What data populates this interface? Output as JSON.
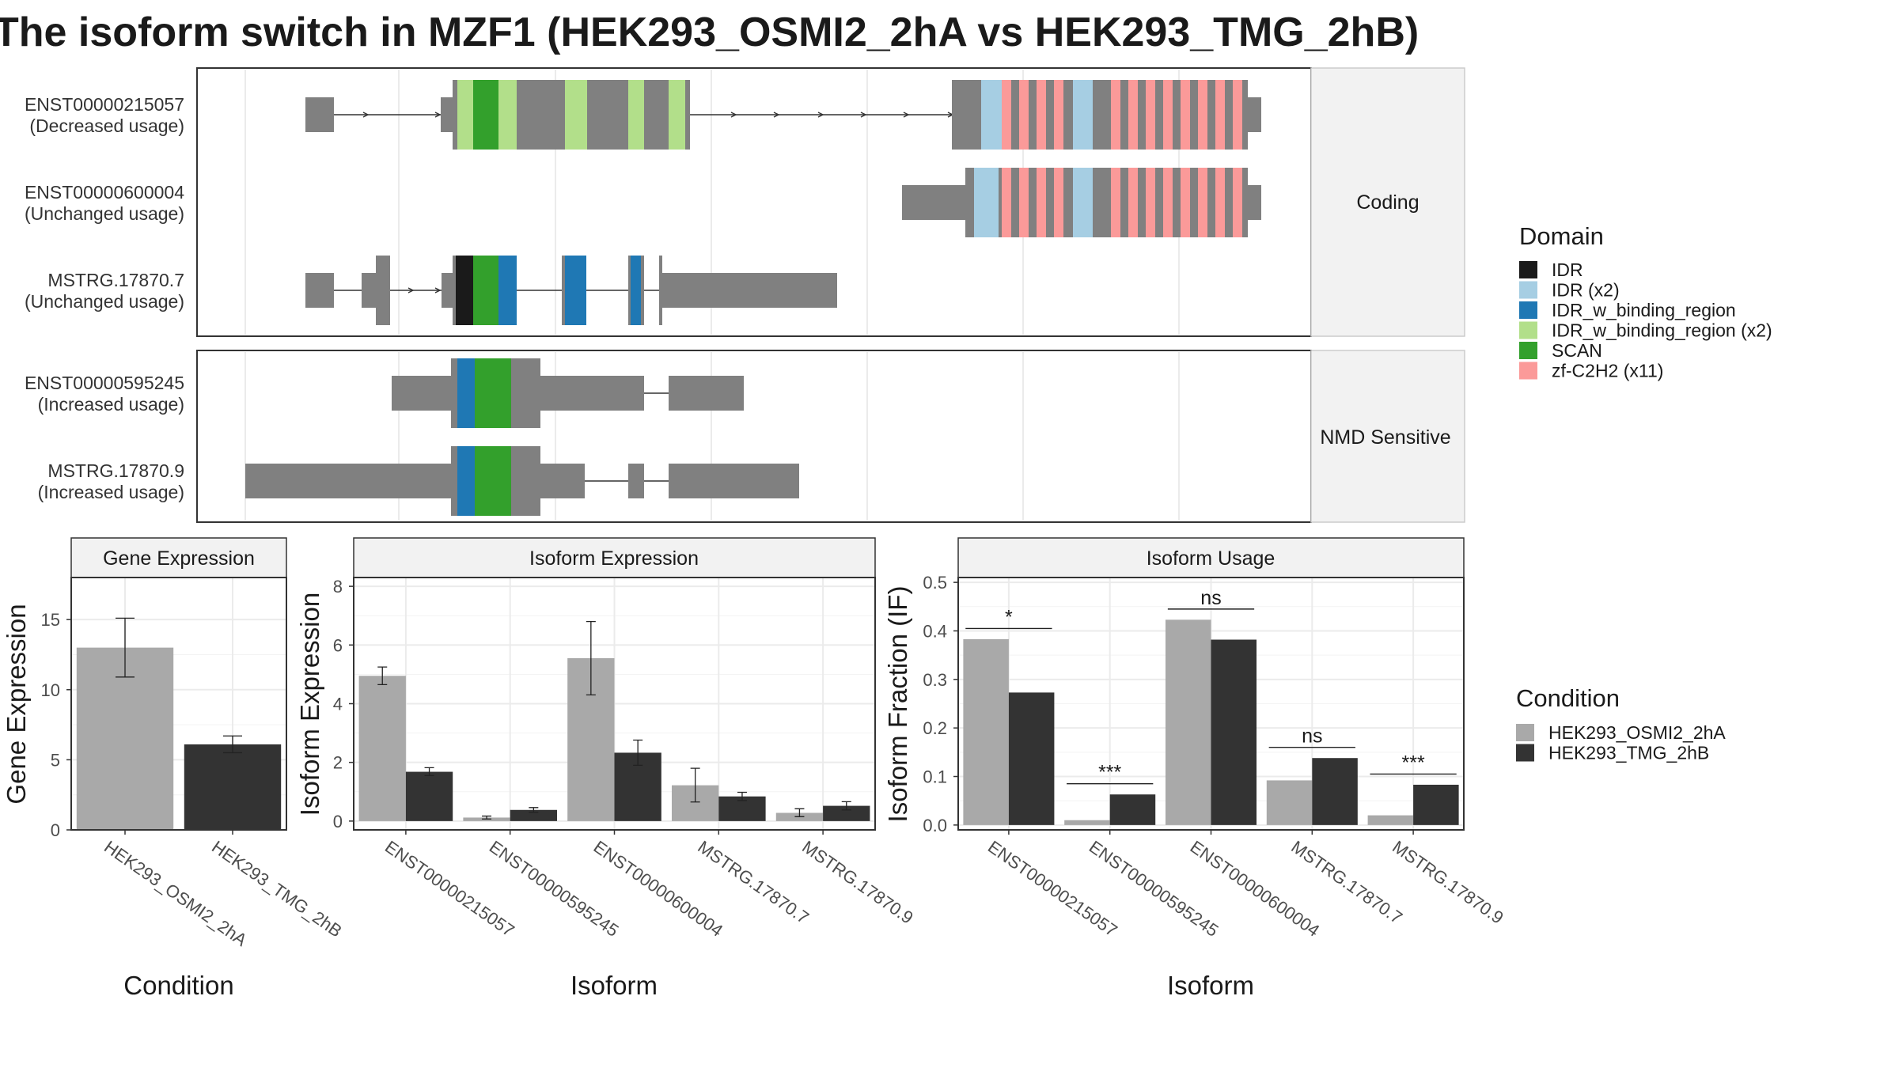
{
  "title": "The isoform switch in MZF1 (HEK293_OSMI2_2hA vs HEK293_TMG_2hB)",
  "colors": {
    "IDR": "#1a1a1a",
    "IDR (x2)": "#a6cee3",
    "IDR_w_binding_region": "#1f78b4",
    "IDR_w_binding_region (x2)": "#b2df8a",
    "SCAN": "#33a02c",
    "zf-C2H2 (x11)": "#fb9a99",
    "exon": "#808080",
    "HEK293_OSMI2_2hA": "#a9a9a9",
    "HEK293_TMG_2hB": "#333333"
  },
  "legend_domain": {
    "title": "Domain",
    "items": [
      "IDR",
      "IDR (x2)",
      "IDR_w_binding_region",
      "IDR_w_binding_region (x2)",
      "SCAN",
      "zf-C2H2 (x11)"
    ]
  },
  "legend_condition": {
    "title": "Condition",
    "items": [
      "HEK293_OSMI2_2hA",
      "HEK293_TMG_2hB"
    ]
  },
  "structure": {
    "facets": [
      {
        "label": "Coding",
        "isoforms": [
          {
            "id": "ENST00000215057",
            "usage": "(Decreased usage)"
          },
          {
            "id": "ENST00000600004",
            "usage": "(Unchanged usage)"
          },
          {
            "id": "MSTRG.17870.7",
            "usage": "(Unchanged usage)"
          }
        ]
      },
      {
        "label": "NMD Sensitive",
        "isoforms": [
          {
            "id": "ENST00000595245",
            "usage": "(Increased usage)"
          },
          {
            "id": "MSTRG.17870.9",
            "usage": "(Increased usage)"
          }
        ]
      }
    ]
  },
  "chart_data": [
    {
      "type": "bar",
      "title": "Gene Expression",
      "xlabel": "Condition",
      "ylabel": "Gene Expression",
      "categories": [
        "HEK293_OSMI2_2hA",
        "HEK293_TMG_2hB"
      ],
      "values": [
        13.0,
        6.1
      ],
      "error": [
        [
          10.9,
          15.1
        ],
        [
          5.5,
          6.7
        ]
      ],
      "ylim": [
        0,
        18
      ],
      "yticks": [
        "0",
        "5",
        "10",
        "15"
      ],
      "grid": true
    },
    {
      "type": "bar",
      "title": "Isoform Expression",
      "xlabel": "Isoform",
      "ylabel": "Isoform Expression",
      "categories": [
        "ENST00000215057",
        "ENST00000595245",
        "ENST00000600004",
        "MSTRG.17870.7",
        "MSTRG.17870.9"
      ],
      "series": [
        {
          "name": "HEK293_OSMI2_2hA",
          "values": [
            4.95,
            0.12,
            5.55,
            1.22,
            0.28
          ],
          "error": [
            [
              4.65,
              5.25
            ],
            [
              0.07,
              0.17
            ],
            [
              4.3,
              6.8
            ],
            [
              0.65,
              1.8
            ],
            [
              0.15,
              0.42
            ]
          ]
        },
        {
          "name": "HEK293_TMG_2hB",
          "values": [
            1.68,
            0.38,
            2.33,
            0.84,
            0.52
          ],
          "error": [
            [
              1.55,
              1.82
            ],
            [
              0.3,
              0.46
            ],
            [
              1.9,
              2.76
            ],
            [
              0.7,
              0.98
            ],
            [
              0.38,
              0.66
            ]
          ]
        }
      ],
      "ylim": [
        -0.3,
        8.3
      ],
      "yticks": [
        "0",
        "2",
        "4",
        "6",
        "8"
      ],
      "grid": true
    },
    {
      "type": "bar",
      "title": "Isoform Usage",
      "xlabel": "Isoform",
      "ylabel": "Isoform Fraction (IF)",
      "categories": [
        "ENST00000215057",
        "ENST00000595245",
        "ENST00000600004",
        "MSTRG.17870.7",
        "MSTRG.17870.9"
      ],
      "series": [
        {
          "name": "HEK293_OSMI2_2hA",
          "values": [
            0.383,
            0.01,
            0.423,
            0.092,
            0.02
          ]
        },
        {
          "name": "HEK293_TMG_2hB",
          "values": [
            0.273,
            0.063,
            0.382,
            0.138,
            0.083
          ]
        }
      ],
      "significance": [
        "*",
        "***",
        "ns",
        "ns",
        "***"
      ],
      "ylim": [
        -0.01,
        0.51
      ],
      "yticks": [
        "0.0",
        "0.1",
        "0.2",
        "0.3",
        "0.4",
        "0.5"
      ],
      "grid": true
    }
  ]
}
